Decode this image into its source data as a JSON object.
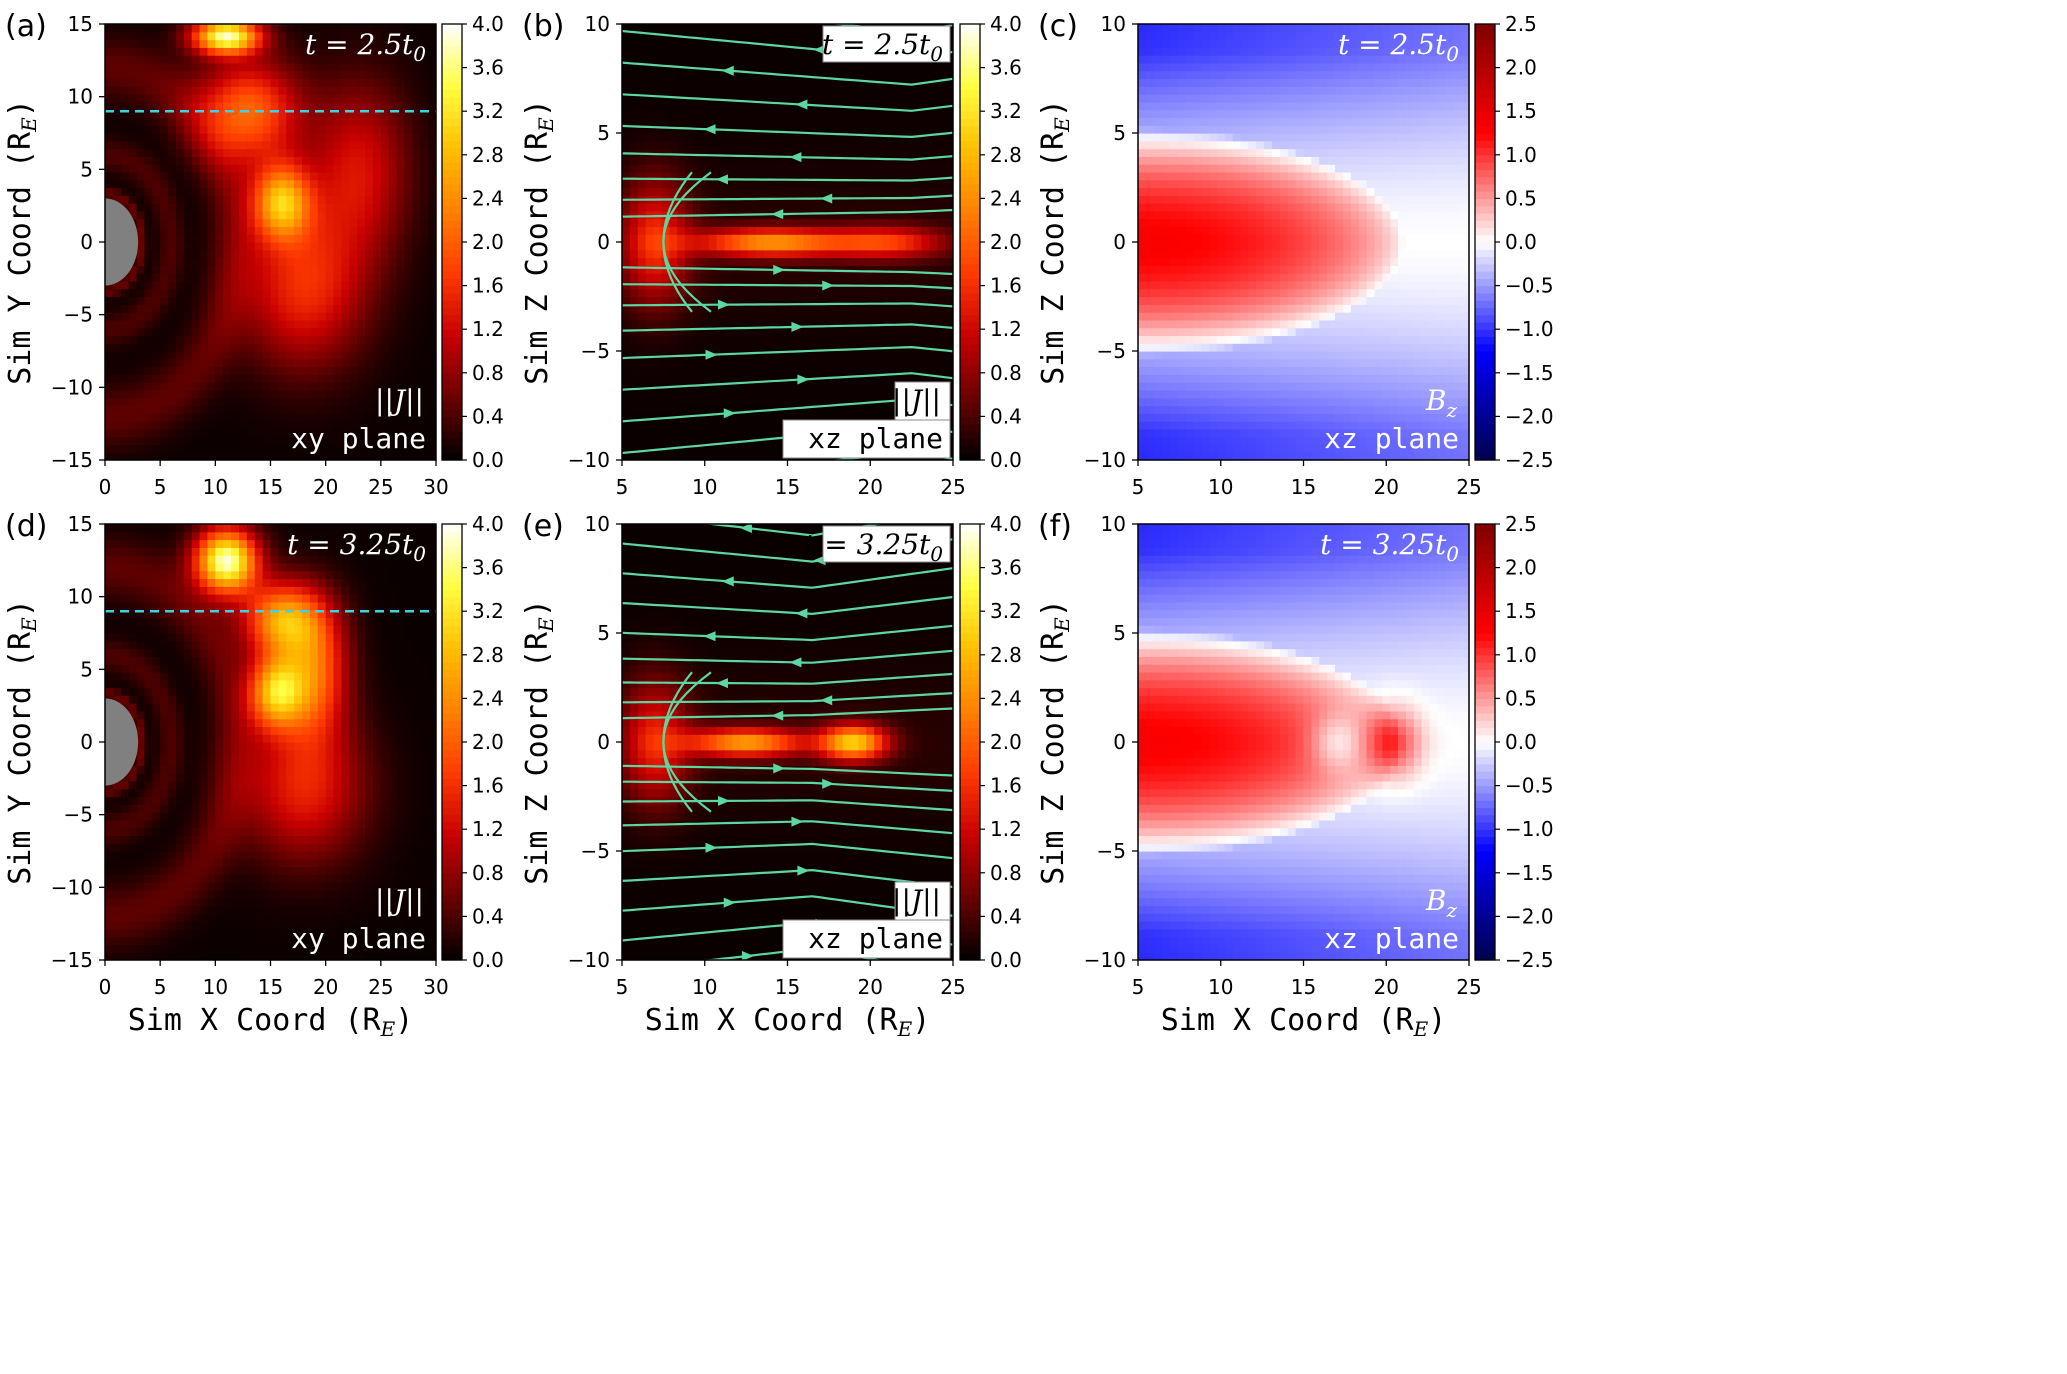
{
  "figure": {
    "panel_labels": [
      "(a)",
      "(b)",
      "(c)",
      "(d)",
      "(e)",
      "(f)"
    ],
    "colormaps": {
      "hot": [
        "#000000",
        "#6a0000",
        "#c80000",
        "#ff3a00",
        "#ff8000",
        "#ffc000",
        "#ffff40",
        "#ffffff"
      ],
      "seismic": [
        "#00004c",
        "#0000ff",
        "#ffffff",
        "#ff0000",
        "#800000"
      ],
      "streamline_color": "#5ed6a0",
      "dashed_line_color": "#40d0e0",
      "earth_color": "#808080"
    }
  },
  "chart_data": [
    {
      "panel": "(a)",
      "type": "heatmap",
      "colormap": "hot",
      "time_label": "t = 2.5t",
      "time_sub": "0",
      "var_label": "||J||",
      "plane_label": "xy plane",
      "xlabel": "",
      "ylabel": "Sim Y Coord (R",
      "ylabel_sub": "E",
      "xlim": [
        0,
        30
      ],
      "ylim": [
        -15,
        15
      ],
      "xticks": [
        "0",
        "5",
        "10",
        "15",
        "20",
        "25",
        "30"
      ],
      "yticks": [
        "−15",
        "−10",
        "−5",
        "0",
        "5",
        "10",
        "15"
      ],
      "colorbar": {
        "range": [
          0,
          4
        ],
        "ticks": [
          "0.0",
          "0.4",
          "0.8",
          "1.2",
          "1.6",
          "2.0",
          "2.4",
          "2.8",
          "3.2",
          "3.6",
          "4.0"
        ]
      },
      "dashed_line_y": 9,
      "earth_radius": 3,
      "features": [
        {
          "x": 11,
          "y": 14.2,
          "value": 3.6,
          "sx": 3.0,
          "sy": 1.2
        },
        {
          "x": 16,
          "y": 2.8,
          "value": 2.5,
          "sx": 2.6,
          "sy": 2.6
        },
        {
          "x": 13,
          "y": 9,
          "value": 2.0,
          "sx": 4.5,
          "sy": 3.5
        },
        {
          "x": 18,
          "y": -3,
          "value": 1.5,
          "sx": 5.5,
          "sy": 5.5
        },
        {
          "x": 23,
          "y": 5,
          "value": 1.2,
          "sx": 4.5,
          "sy": 6
        }
      ]
    },
    {
      "panel": "(b)",
      "type": "heatmap",
      "colormap": "hot",
      "time_label": "t = 2.5t",
      "time_sub": "0",
      "var_label": "||J||",
      "plane_label": "xz plane",
      "xlabel": "",
      "ylabel": "Sim Z Coord (R",
      "ylabel_sub": "E",
      "xlim": [
        5,
        25
      ],
      "ylim": [
        -12.5,
        12.5
      ],
      "xticks": [
        "5",
        "10",
        "15",
        "20",
        "25"
      ],
      "yticks": [
        "−10",
        "−5",
        "0",
        "5",
        "10"
      ],
      "colorbar": {
        "range": [
          0,
          4
        ],
        "ticks": [
          "0.0",
          "0.4",
          "0.8",
          "1.2",
          "1.6",
          "2.0",
          "2.4",
          "2.8",
          "3.2",
          "3.6",
          "4.0"
        ]
      },
      "features": [
        {
          "x": 14,
          "y": 0,
          "value": 2.3,
          "sx": 4.5,
          "sy": 0.8
        },
        {
          "x": 7,
          "y": 0,
          "value": 1.4,
          "sx": 2.0,
          "sy": 3.5
        },
        {
          "x": 21,
          "y": 0,
          "value": 1.5,
          "sx": 3.5,
          "sy": 0.9
        }
      ],
      "x_point": 22.5
    },
    {
      "panel": "(c)",
      "type": "heatmap",
      "colormap": "seismic",
      "time_label": "t = 2.5t",
      "time_sub": "0",
      "var_label": "B",
      "var_sub": "z",
      "plane_label": "xz plane",
      "xlabel": "",
      "ylabel": "Sim Z Coord (R",
      "ylabel_sub": "E",
      "xlim": [
        5,
        25
      ],
      "ylim": [
        -12.5,
        12.5
      ],
      "xticks": [
        "5",
        "10",
        "15",
        "20",
        "25"
      ],
      "yticks": [
        "−10",
        "−5",
        "0",
        "5",
        "10"
      ],
      "colorbar": {
        "range": [
          -2.5,
          2.5
        ],
        "ticks": [
          "−2.5",
          "−2.0",
          "−1.5",
          "−1.0",
          "−0.5",
          "0.0",
          "0.5",
          "1.0",
          "1.5",
          "2.0",
          "2.5"
        ]
      },
      "features": []
    },
    {
      "panel": "(d)",
      "type": "heatmap",
      "colormap": "hot",
      "time_label": "t = 3.25t",
      "time_sub": "0",
      "var_label": "||J||",
      "plane_label": "xy plane",
      "xlabel": "Sim X Coord (R",
      "xlabel_sub": "E",
      "ylabel": "Sim Y Coord (R",
      "ylabel_sub": "E",
      "xlim": [
        0,
        30
      ],
      "ylim": [
        -15,
        15
      ],
      "xticks": [
        "0",
        "5",
        "10",
        "15",
        "20",
        "25",
        "30"
      ],
      "yticks": [
        "−15",
        "−10",
        "−5",
        "0",
        "5",
        "10",
        "15"
      ],
      "colorbar": {
        "range": [
          0,
          4
        ],
        "ticks": [
          "0.0",
          "0.4",
          "0.8",
          "1.2",
          "1.6",
          "2.0",
          "2.4",
          "2.8",
          "3.2",
          "3.6",
          "4.0"
        ]
      },
      "dashed_line_y": 9,
      "earth_radius": 3,
      "features": [
        {
          "x": 11,
          "y": 12.5,
          "value": 3.8,
          "sx": 2.8,
          "sy": 2.2
        },
        {
          "x": 16,
          "y": 8.5,
          "value": 2.4,
          "sx": 3.5,
          "sy": 2.5
        },
        {
          "x": 15.5,
          "y": 3.5,
          "value": 2.6,
          "sx": 2.5,
          "sy": 2.5
        },
        {
          "x": 19,
          "y": 5,
          "value": 1.9,
          "sx": 3.0,
          "sy": 4.5
        },
        {
          "x": 18,
          "y": -3,
          "value": 1.4,
          "sx": 5.5,
          "sy": 5
        }
      ]
    },
    {
      "panel": "(e)",
      "type": "heatmap",
      "colormap": "hot",
      "time_label": "t = 3.25t",
      "time_sub": "0",
      "var_label": "||J||",
      "plane_label": "xz plane",
      "xlabel": "Sim X Coord (R",
      "xlabel_sub": "E",
      "ylabel": "Sim Z Coord (R",
      "ylabel_sub": "E",
      "xlim": [
        5,
        25
      ],
      "ylim": [
        -12.5,
        12.5
      ],
      "xticks": [
        "5",
        "10",
        "15",
        "20",
        "25"
      ],
      "yticks": [
        "−10",
        "−5",
        "0",
        "5",
        "10"
      ],
      "colorbar": {
        "range": [
          0,
          4
        ],
        "ticks": [
          "0.0",
          "0.4",
          "0.8",
          "1.2",
          "1.6",
          "2.0",
          "2.4",
          "2.8",
          "3.2",
          "3.6",
          "4.0"
        ]
      },
      "features": [
        {
          "x": 12.5,
          "y": 0,
          "value": 2.4,
          "sx": 3.5,
          "sy": 0.8
        },
        {
          "x": 19,
          "y": 0,
          "value": 2.8,
          "sx": 2.0,
          "sy": 1.0
        },
        {
          "x": 7,
          "y": 0,
          "value": 1.3,
          "sx": 2.0,
          "sy": 3.5
        }
      ],
      "x_point": 16.5
    },
    {
      "panel": "(f)",
      "type": "heatmap",
      "colormap": "seismic",
      "time_label": "t = 3.25t",
      "time_sub": "0",
      "var_label": "B",
      "var_sub": "z",
      "plane_label": "xz plane",
      "xlabel": "Sim X Coord (R",
      "xlabel_sub": "E",
      "ylabel": "Sim Z Coord (R",
      "ylabel_sub": "E",
      "xlim": [
        5,
        25
      ],
      "ylim": [
        -12.5,
        12.5
      ],
      "xticks": [
        "5",
        "10",
        "15",
        "20",
        "25"
      ],
      "yticks": [
        "−10",
        "−5",
        "0",
        "5",
        "10"
      ],
      "colorbar": {
        "range": [
          -2.5,
          2.5
        ],
        "ticks": [
          "−2.5",
          "−2.0",
          "−1.5",
          "−1.0",
          "−0.5",
          "0.0",
          "0.5",
          "1.0",
          "1.5",
          "2.0",
          "2.5"
        ]
      },
      "features": [
        {
          "x": 17,
          "y": 0,
          "value": -0.6,
          "sx": 1.6,
          "sy": 1.6
        },
        {
          "x": 20.5,
          "y": 0,
          "value": 0.9,
          "sx": 1.6,
          "sy": 2.0
        }
      ]
    }
  ]
}
